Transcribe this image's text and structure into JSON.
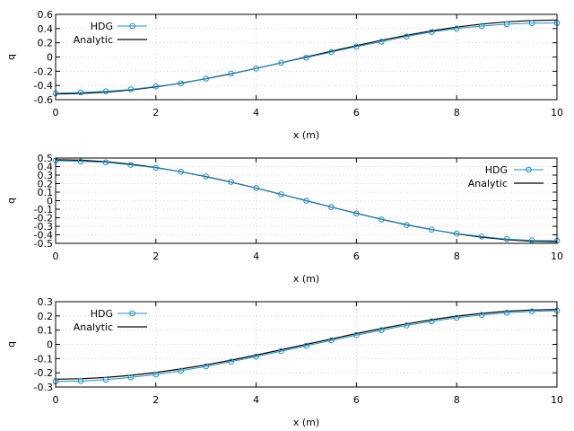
{
  "colors": {
    "hdg": "#1f8fc0",
    "analytic": "#000000",
    "grid": "#c8c8c8"
  },
  "chart_data": [
    {
      "type": "line",
      "title": "",
      "xlabel": "x (m)",
      "ylabel": "q",
      "xlim": [
        0,
        10
      ],
      "ylim": [
        -0.6,
        0.6
      ],
      "grid": true,
      "legend_position": "top-left",
      "x_ticks": [
        "0",
        "2",
        "4",
        "6",
        "8",
        "10"
      ],
      "y_ticks": [
        "-0.6",
        "-0.4",
        "-0.2",
        "0",
        "0.2",
        "0.4",
        "0.6"
      ],
      "series": [
        {
          "name": "HDG",
          "style": "line-markers",
          "x": [
            0,
            0.5,
            1,
            1.5,
            2,
            2.5,
            3,
            3.5,
            4,
            4.5,
            5,
            5.5,
            6,
            6.5,
            7,
            7.5,
            8,
            8.5,
            9,
            9.5,
            10
          ],
          "y": [
            -0.51,
            -0.498,
            -0.484,
            -0.456,
            -0.413,
            -0.372,
            -0.303,
            -0.232,
            -0.162,
            -0.081,
            -0.008,
            0.07,
            0.146,
            0.216,
            0.289,
            0.352,
            0.4,
            0.436,
            0.462,
            0.477,
            0.48
          ]
        },
        {
          "name": "Analytic",
          "style": "line",
          "x": [
            0,
            0.5,
            1,
            1.5,
            2,
            2.5,
            3,
            3.5,
            4,
            4.5,
            5,
            5.5,
            6,
            6.5,
            7,
            7.5,
            8,
            8.5,
            9,
            9.5,
            10
          ],
          "y": [
            -0.52,
            -0.514,
            -0.495,
            -0.463,
            -0.421,
            -0.368,
            -0.306,
            -0.236,
            -0.161,
            -0.081,
            0.0,
            0.081,
            0.161,
            0.236,
            0.306,
            0.368,
            0.421,
            0.463,
            0.495,
            0.514,
            0.52
          ]
        }
      ]
    },
    {
      "type": "line",
      "title": "",
      "xlabel": "x (m)",
      "ylabel": "q",
      "xlim": [
        0,
        10
      ],
      "ylim": [
        -0.5,
        0.5
      ],
      "grid": true,
      "legend_position": "top-right",
      "x_ticks": [
        "0",
        "2",
        "4",
        "6",
        "8",
        "10"
      ],
      "y_ticks": [
        "-0.5",
        "-0.4",
        "-0.3",
        "-0.2",
        "-0.1",
        "0",
        "0.1",
        "0.2",
        "0.3",
        "0.4",
        "0.5"
      ],
      "series": [
        {
          "name": "HDG",
          "style": "line-markers",
          "x": [
            0,
            0.5,
            1,
            1.5,
            2,
            2.5,
            3,
            3.5,
            4,
            4.5,
            5,
            5.5,
            6,
            6.5,
            7,
            7.5,
            8,
            8.5,
            9,
            9.5,
            10
          ],
          "y": [
            0.47,
            0.46,
            0.45,
            0.42,
            0.385,
            0.34,
            0.285,
            0.22,
            0.15,
            0.075,
            0.0,
            -0.075,
            -0.15,
            -0.22,
            -0.285,
            -0.34,
            -0.385,
            -0.42,
            -0.45,
            -0.465,
            -0.47
          ]
        },
        {
          "name": "Analytic",
          "style": "line",
          "x": [
            0,
            0.5,
            1,
            1.5,
            2,
            2.5,
            3,
            3.5,
            4,
            4.5,
            5,
            5.5,
            6,
            6.5,
            7,
            7.5,
            8,
            8.5,
            9,
            9.5,
            10
          ],
          "y": [
            0.48,
            0.475,
            0.457,
            0.428,
            0.388,
            0.339,
            0.282,
            0.218,
            0.148,
            0.075,
            0.0,
            -0.075,
            -0.148,
            -0.218,
            -0.282,
            -0.339,
            -0.388,
            -0.428,
            -0.457,
            -0.475,
            -0.48
          ]
        }
      ]
    },
    {
      "type": "line",
      "title": "",
      "xlabel": "x (m)",
      "ylabel": "q",
      "xlim": [
        0,
        10
      ],
      "ylim": [
        -0.3,
        0.3
      ],
      "grid": true,
      "legend_position": "top-left",
      "x_ticks": [
        "0",
        "2",
        "4",
        "6",
        "8",
        "10"
      ],
      "y_ticks": [
        "-0.3",
        "-0.2",
        "-0.1",
        "0",
        "0.1",
        "0.2",
        "0.3"
      ],
      "series": [
        {
          "name": "HDG",
          "style": "line-markers",
          "x": [
            0,
            0.5,
            1,
            1.5,
            2,
            2.5,
            3,
            3.5,
            4,
            4.5,
            5,
            5.5,
            6,
            6.5,
            7,
            7.5,
            8,
            8.5,
            9,
            9.5,
            10
          ],
          "y": [
            -0.26,
            -0.258,
            -0.249,
            -0.232,
            -0.212,
            -0.186,
            -0.155,
            -0.122,
            -0.086,
            -0.048,
            -0.01,
            0.028,
            0.065,
            0.1,
            0.133,
            0.162,
            0.187,
            0.207,
            0.222,
            0.232,
            0.237
          ]
        },
        {
          "name": "Analytic",
          "style": "line",
          "x": [
            0,
            0.5,
            1,
            1.5,
            2,
            2.5,
            3,
            3.5,
            4,
            4.5,
            5,
            5.5,
            6,
            6.5,
            7,
            7.5,
            8,
            8.5,
            9,
            9.5,
            10
          ],
          "y": [
            -0.245,
            -0.242,
            -0.233,
            -0.218,
            -0.198,
            -0.173,
            -0.144,
            -0.111,
            -0.076,
            -0.038,
            0.0,
            0.038,
            0.076,
            0.111,
            0.144,
            0.173,
            0.198,
            0.218,
            0.233,
            0.242,
            0.245
          ]
        }
      ]
    }
  ]
}
